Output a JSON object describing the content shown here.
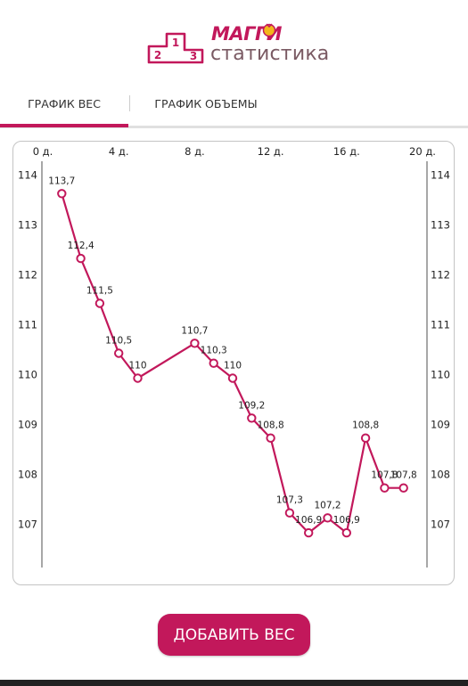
{
  "header": {
    "logo_title": "МАГГИ",
    "logo_subtitle": "статистика",
    "podium_numbers": [
      "2",
      "1",
      "3"
    ]
  },
  "tabs": [
    {
      "label": "ГРАФИК ВЕС",
      "active": true
    },
    {
      "label": "ГРАФИК ОБЪЕМЫ",
      "active": false
    }
  ],
  "colors": {
    "accent": "#c2185b",
    "line": "#c2185b",
    "axis": "#9e9e9e"
  },
  "chart_data": {
    "type": "line",
    "x_ticks": [
      "0 д.",
      "4 д.",
      "8 д.",
      "12 д.",
      "16 д.",
      "20 д."
    ],
    "x_tick_values": [
      0,
      4,
      8,
      12,
      16,
      20
    ],
    "y_ticks": [
      "114",
      "113",
      "112",
      "111",
      "110",
      "109",
      "108",
      "107"
    ],
    "y_tick_values": [
      114,
      113,
      112,
      111,
      110,
      109,
      108,
      107
    ],
    "xlim": [
      0,
      20
    ],
    "ylim": [
      106.2,
      114.2
    ],
    "grid": false,
    "series": [
      {
        "points": [
          {
            "x": 1,
            "y": 113.7,
            "label": "113,7"
          },
          {
            "x": 2,
            "y": 112.4,
            "label": "112,4"
          },
          {
            "x": 3,
            "y": 111.5,
            "label": "111,5"
          },
          {
            "x": 4,
            "y": 110.5,
            "label": "110,5"
          },
          {
            "x": 5,
            "y": 110,
            "label": "110"
          },
          {
            "x": 8,
            "y": 110.7,
            "label": "110,7"
          },
          {
            "x": 9,
            "y": 110.3,
            "label": "110,3"
          },
          {
            "x": 10,
            "y": 110,
            "label": "110"
          },
          {
            "x": 11,
            "y": 109.2,
            "label": "109,2"
          },
          {
            "x": 12,
            "y": 108.8,
            "label": "108,8"
          },
          {
            "x": 13,
            "y": 107.3,
            "label": "107,3"
          },
          {
            "x": 14,
            "y": 106.9,
            "label": "106,9"
          },
          {
            "x": 15,
            "y": 107.2,
            "label": "107,2"
          },
          {
            "x": 16,
            "y": 106.9,
            "label": "106,9"
          },
          {
            "x": 17,
            "y": 108.8,
            "label": "108,8"
          },
          {
            "x": 18,
            "y": 107.8,
            "label": "107,8"
          },
          {
            "x": 19,
            "y": 107.8,
            "label": "107,8"
          }
        ]
      }
    ]
  },
  "actions": {
    "add_weight_label": "ДОБАВИТЬ ВЕС"
  }
}
